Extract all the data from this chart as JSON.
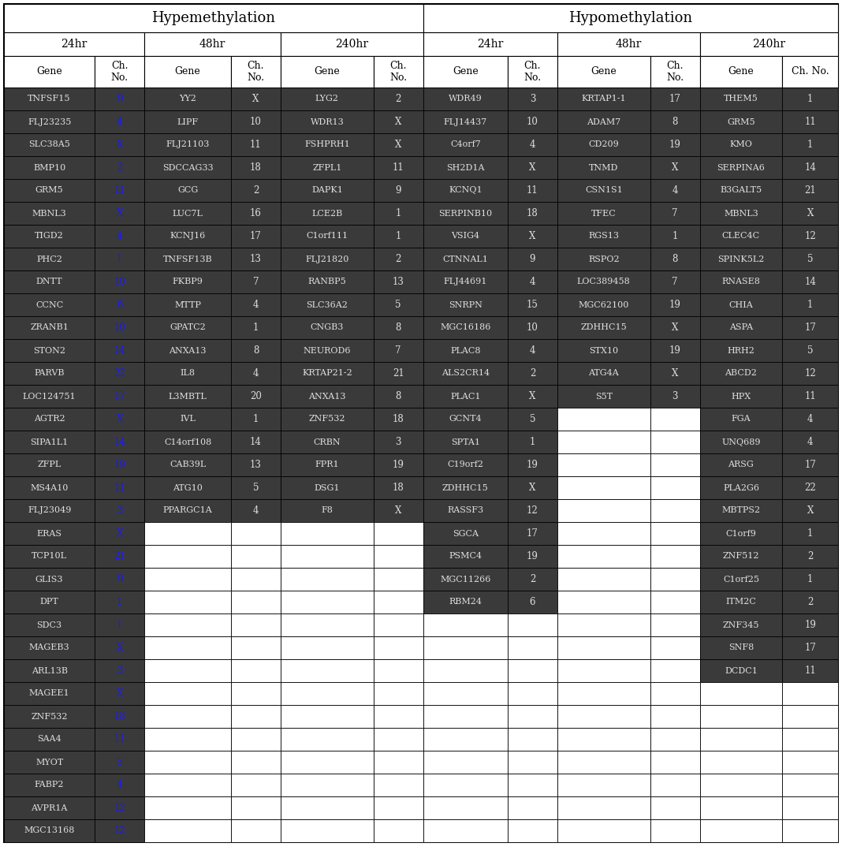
{
  "title_hyper": "Hypemethylation",
  "title_hypo": "Hypomethylation",
  "hyper_24hr": [
    [
      "TNFSF15",
      "9"
    ],
    [
      "FLJ23235",
      "4"
    ],
    [
      "SLC38A5",
      "X"
    ],
    [
      "BMP10",
      "2"
    ],
    [
      "GRM5",
      "11"
    ],
    [
      "MBNL3",
      "X"
    ],
    [
      "TIGD2",
      "4"
    ],
    [
      "PHC2",
      "1"
    ],
    [
      "DNTT",
      "10"
    ],
    [
      "CCNC",
      "6"
    ],
    [
      "ZRANB1",
      "10"
    ],
    [
      "STON2",
      "14"
    ],
    [
      "PARVB",
      "22"
    ],
    [
      "LOC124751",
      "17"
    ],
    [
      "AGTR2",
      "X"
    ],
    [
      "SIPA1L1",
      "14"
    ],
    [
      "ZFPL",
      "19"
    ],
    [
      "MS4A10",
      "11"
    ],
    [
      "FLJ23049",
      "3"
    ],
    [
      "ERAS",
      "X"
    ],
    [
      "TCP10L",
      "21"
    ],
    [
      "GLIS3",
      "9"
    ],
    [
      "DPT",
      "1"
    ],
    [
      "SDC3",
      "1"
    ],
    [
      "MAGEB3",
      "X"
    ],
    [
      "ARL13B",
      "3"
    ],
    [
      "MAGEE1",
      "X"
    ],
    [
      "ZNF532",
      "18"
    ],
    [
      "SAA4",
      "11"
    ],
    [
      "MYOT",
      "5"
    ],
    [
      "FABP2",
      "4"
    ],
    [
      "AVPR1A",
      "12"
    ],
    [
      "MGC13168",
      "12"
    ]
  ],
  "hyper_48hr": [
    [
      "YY2",
      "X"
    ],
    [
      "LIPF",
      "10"
    ],
    [
      "FLJ21103",
      "11"
    ],
    [
      "SDCCAG33",
      "18"
    ],
    [
      "GCG",
      "2"
    ],
    [
      "LUC7L",
      "16"
    ],
    [
      "KCNJ16",
      "17"
    ],
    [
      "TNFSF13B",
      "13"
    ],
    [
      "FKBP9",
      "7"
    ],
    [
      "MTTP",
      "4"
    ],
    [
      "GPATC2",
      "1"
    ],
    [
      "ANXA13",
      "8"
    ],
    [
      "IL8",
      "4"
    ],
    [
      "L3MBTL",
      "20"
    ],
    [
      "IVL",
      "1"
    ],
    [
      "C14orf108",
      "14"
    ],
    [
      "CAB39L",
      "13"
    ],
    [
      "ATG10",
      "5"
    ],
    [
      "PPARGC1A",
      "4"
    ]
  ],
  "hyper_240hr": [
    [
      "LYG2",
      "2"
    ],
    [
      "WDR13",
      "X"
    ],
    [
      "FSHPRH1",
      "X"
    ],
    [
      "ZFPL1",
      "11"
    ],
    [
      "DAPK1",
      "9"
    ],
    [
      "LCE2B",
      "1"
    ],
    [
      "C1orf111",
      "1"
    ],
    [
      "FLJ21820",
      "2"
    ],
    [
      "RANBP5",
      "13"
    ],
    [
      "SLC36A2",
      "5"
    ],
    [
      "CNGB3",
      "8"
    ],
    [
      "NEUROD6",
      "7"
    ],
    [
      "KRTAP21-2",
      "21"
    ],
    [
      "ANXA13",
      "8"
    ],
    [
      "ZNF532",
      "18"
    ],
    [
      "CRBN",
      "3"
    ],
    [
      "FPR1",
      "19"
    ],
    [
      "DSG1",
      "18"
    ],
    [
      "F8",
      "X"
    ]
  ],
  "hypo_24hr": [
    [
      "WDR49",
      "3"
    ],
    [
      "FLJ14437",
      "10"
    ],
    [
      "C4orf7",
      "4"
    ],
    [
      "SH2D1A",
      "X"
    ],
    [
      "KCNQ1",
      "11"
    ],
    [
      "SERPINB10",
      "18"
    ],
    [
      "VSIG4",
      "X"
    ],
    [
      "CTNNAL1",
      "9"
    ],
    [
      "FLJ44691",
      "4"
    ],
    [
      "SNRPN",
      "15"
    ],
    [
      "MGC16186",
      "10"
    ],
    [
      "PLAC8",
      "4"
    ],
    [
      "ALS2CR14",
      "2"
    ],
    [
      "PLAC1",
      "X"
    ],
    [
      "GCNT4",
      "5"
    ],
    [
      "SPTA1",
      "1"
    ],
    [
      "C19orf2",
      "19"
    ],
    [
      "ZDHHC15",
      "X"
    ],
    [
      "RASSF3",
      "12"
    ],
    [
      "SGCA",
      "17"
    ],
    [
      "PSMC4",
      "19"
    ],
    [
      "MGC11266",
      "2"
    ],
    [
      "RBM24",
      "6"
    ]
  ],
  "hypo_48hr": [
    [
      "KRTAP1-1",
      "17"
    ],
    [
      "ADAM7",
      "8"
    ],
    [
      "CD209",
      "19"
    ],
    [
      "TNMD",
      "X"
    ],
    [
      "CSN1S1",
      "4"
    ],
    [
      "TFEC",
      "7"
    ],
    [
      "RGS13",
      "1"
    ],
    [
      "RSPO2",
      "8"
    ],
    [
      "LOC389458",
      "7"
    ],
    [
      "MGC62100",
      "19"
    ],
    [
      "ZDHHC15",
      "X"
    ],
    [
      "STX10",
      "19"
    ],
    [
      "ATG4A",
      "X"
    ],
    [
      "S5T",
      "3"
    ]
  ],
  "hypo_240hr": [
    [
      "THEM5",
      "1"
    ],
    [
      "GRM5",
      "11"
    ],
    [
      "KMO",
      "1"
    ],
    [
      "SERPINA6",
      "14"
    ],
    [
      "B3GALT5",
      "21"
    ],
    [
      "MBNL3",
      "X"
    ],
    [
      "CLEC4C",
      "12"
    ],
    [
      "SPINK5L2",
      "5"
    ],
    [
      "RNASE8",
      "14"
    ],
    [
      "CHIA",
      "1"
    ],
    [
      "ASPA",
      "17"
    ],
    [
      "HRH2",
      "5"
    ],
    [
      "ABCD2",
      "12"
    ],
    [
      "HPX",
      "11"
    ],
    [
      "FGA",
      "4"
    ],
    [
      "UNQ689",
      "4"
    ],
    [
      "ARSG",
      "17"
    ],
    [
      "PLA2G6",
      "22"
    ],
    [
      "MBTPS2",
      "X"
    ],
    [
      "C1orf9",
      "1"
    ],
    [
      "ZNF512",
      "2"
    ],
    [
      "C1orf25",
      "1"
    ],
    [
      "ITM2C",
      "2"
    ],
    [
      "ZNF345",
      "19"
    ],
    [
      "SNF8",
      "17"
    ],
    [
      "DCDC1",
      "11"
    ]
  ],
  "dark_bg": "#3a3a3a",
  "light_bg": "#ffffff",
  "header_bg": "#ffffff",
  "blue_color": "#1a1aff",
  "dark_text": "#e0e0e0",
  "black_text": "#000000",
  "hyper24_blue_ch": [
    0,
    1,
    2,
    3,
    4,
    5,
    6,
    7,
    8,
    9,
    10,
    11,
    12,
    13,
    14,
    15,
    16,
    17,
    18,
    19,
    20,
    21,
    22,
    23,
    24,
    25,
    26,
    27,
    28,
    29,
    30,
    31,
    32
  ]
}
